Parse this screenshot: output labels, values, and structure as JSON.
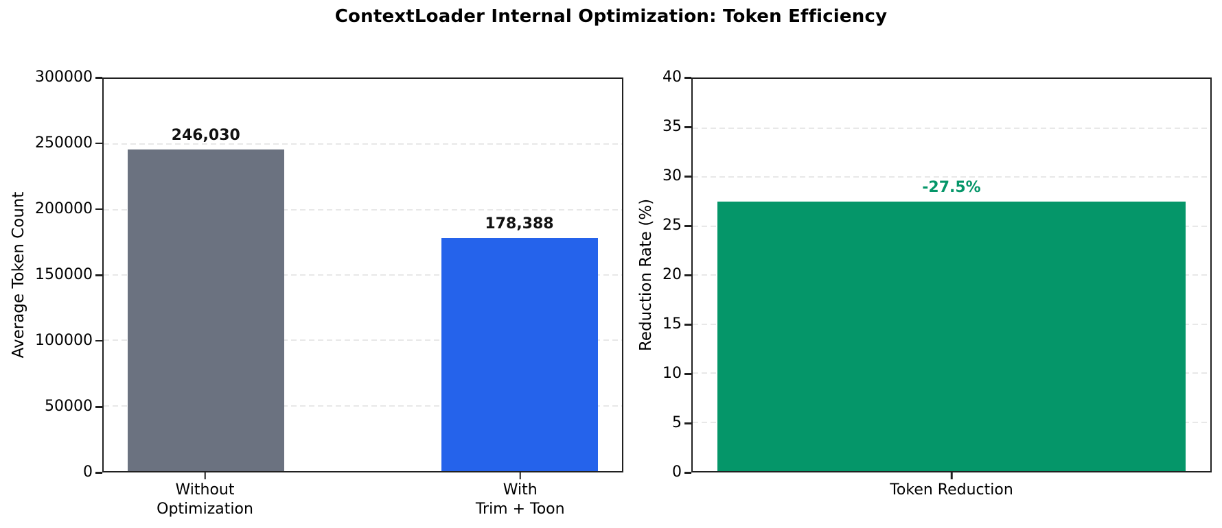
{
  "title": "ContextLoader Internal Optimization: Token Efficiency",
  "colors": {
    "bar_gray": "#6b7280",
    "bar_blue": "#2563eb",
    "bar_green": "#059669",
    "spine": "#202020",
    "grid": "#e8e8e8",
    "text": "#000000"
  },
  "chart_data": [
    {
      "type": "bar",
      "title": "",
      "xlabel": "",
      "ylabel": "Average Token Count",
      "ylim": [
        0,
        300000
      ],
      "yticks": [
        0,
        50000,
        100000,
        150000,
        200000,
        250000,
        300000
      ],
      "ytick_labels": [
        "0",
        "50000",
        "100000",
        "150000",
        "200000",
        "250000",
        "300000"
      ],
      "categories": [
        "Without\nOptimization",
        "With\nTrim + Toon"
      ],
      "values": [
        246030,
        178388
      ],
      "bar_labels": [
        "246,030",
        "178,388"
      ],
      "bar_colors": [
        "#6b7280",
        "#2563eb"
      ],
      "bar_label_colors": [
        "#111111",
        "#111111"
      ],
      "bar_centers_frac": [
        0.197,
        0.802
      ],
      "bar_width_frac": 0.302,
      "grid": true,
      "grid_style": "dashed-horizontal",
      "legend": "none"
    },
    {
      "type": "bar",
      "title": "",
      "xlabel": "",
      "ylabel": "Reduction Rate (%)",
      "ylim": [
        0,
        40
      ],
      "yticks": [
        0,
        5,
        10,
        15,
        20,
        25,
        30,
        35,
        40
      ],
      "ytick_labels": [
        "0",
        "5",
        "10",
        "15",
        "20",
        "25",
        "30",
        "35",
        "40"
      ],
      "categories": [
        "Token Reduction"
      ],
      "values": [
        27.5
      ],
      "bar_labels": [
        "-27.5%"
      ],
      "bar_colors": [
        "#059669"
      ],
      "bar_label_colors": [
        "#059669"
      ],
      "bar_centers_frac": [
        0.5
      ],
      "bar_width_frac": 0.905,
      "grid": true,
      "grid_style": "dashed-horizontal",
      "legend": "none"
    }
  ]
}
